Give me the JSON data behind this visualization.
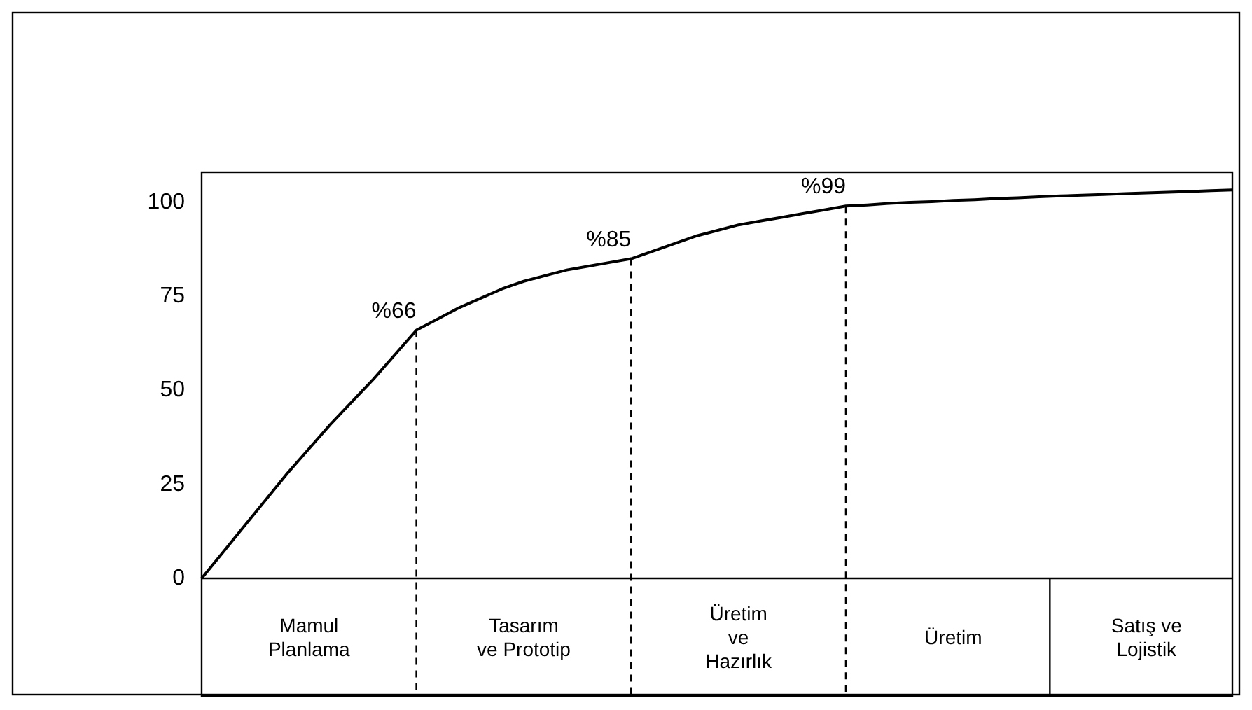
{
  "chart_data": {
    "type": "line",
    "categories": [
      null,
      null,
      null,
      null,
      null,
      "Mamul\nPlanlama",
      null,
      null,
      null,
      null,
      null,
      null,
      null,
      null,
      null,
      "Tasarım\nve Prototip",
      null,
      null,
      null,
      null,
      null,
      null,
      null,
      null,
      null,
      "Üretim\nve\nHazırlık",
      null,
      null,
      null,
      null,
      null,
      null,
      null,
      null,
      null,
      "Üretim",
      null,
      null,
      null,
      null,
      null,
      null,
      null,
      null,
      "Satış ve\nLojistik",
      null,
      null,
      null,
      null
    ],
    "series": [
      {
        "color": "#000000",
        "values": [
          0,
          7,
          14,
          21,
          28,
          34.5,
          41,
          47,
          53,
          59.5,
          66,
          69,
          72,
          74.5,
          77,
          79,
          80.5,
          82,
          83,
          84,
          85,
          87,
          89,
          91,
          92.5,
          94,
          95,
          96,
          97,
          98,
          99,
          99.3,
          99.7,
          100,
          100.2,
          100.5,
          100.7,
          101,
          101.2,
          101.5,
          101.7,
          101.9,
          102.1,
          102.3,
          102.5,
          102.7,
          102.9,
          103.1,
          103.3
        ],
        "value_labels": [
          null,
          null,
          null,
          null,
          null,
          null,
          null,
          null,
          null,
          null,
          "%66",
          null,
          null,
          null,
          null,
          null,
          null,
          null,
          null,
          null,
          "%85",
          null,
          null,
          null,
          null,
          null,
          null,
          null,
          null,
          null,
          "%99",
          null,
          null,
          null,
          null,
          null,
          null,
          null,
          null,
          null,
          null,
          null,
          null,
          null,
          null,
          null,
          null,
          null,
          null
        ]
      }
    ],
    "ylim": [
      0,
      108
    ],
    "yticks": [
      0,
      25,
      50,
      75,
      100
    ],
    "grid": "x"
  }
}
